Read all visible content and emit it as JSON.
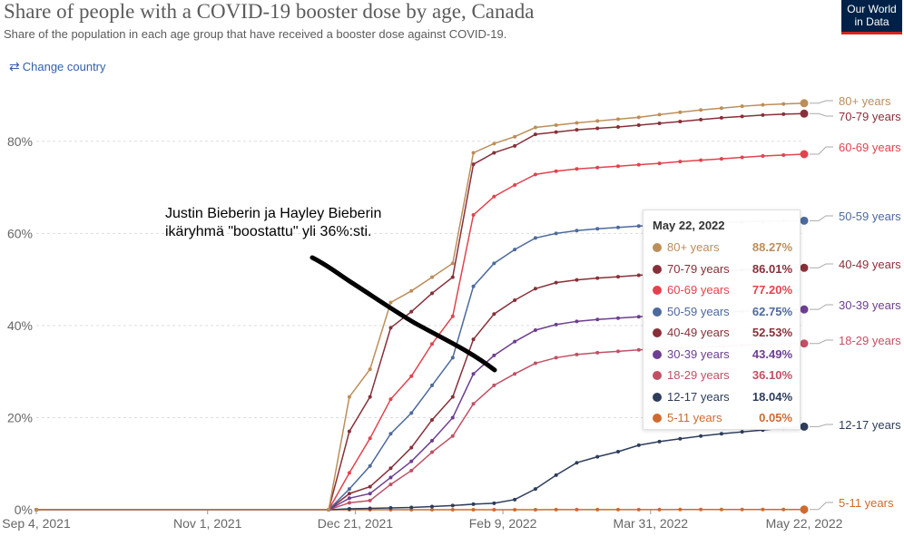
{
  "header": {
    "title": "Share of people with a COVID-19 booster dose by age, Canada",
    "subtitle": "Share of the population in each age group that have received a booster dose against COVID-19.",
    "change_country": "Change country",
    "logo_line1": "Our World",
    "logo_line2": "in Data"
  },
  "annotation": "Justin Bieberin ja Hayley Bieberin ikäryhmä \"boostattu\" yli 36%:sti.",
  "tooltip": {
    "date": "May 22, 2022",
    "rows": [
      {
        "label": "80+ years",
        "value": "88.27%"
      },
      {
        "label": "70-79 years",
        "value": "86.01%"
      },
      {
        "label": "60-69 years",
        "value": "77.20%"
      },
      {
        "label": "50-59 years",
        "value": "62.75%"
      },
      {
        "label": "40-49 years",
        "value": "52.53%"
      },
      {
        "label": "30-39 years",
        "value": "43.49%"
      },
      {
        "label": "18-29 years",
        "value": "36.10%"
      },
      {
        "label": "12-17 years",
        "value": "18.04%"
      },
      {
        "label": "5-11 years",
        "value": "0.05%"
      }
    ]
  },
  "chart_data": {
    "type": "line",
    "x_unit": "days since Sep 4, 2021",
    "x_ticks": [
      {
        "x": 0,
        "label": "Sep 4, 2021"
      },
      {
        "x": 58,
        "label": "Nov 1, 2021"
      },
      {
        "x": 108,
        "label": "Dec 21, 2021"
      },
      {
        "x": 158,
        "label": "Feb 9, 2022"
      },
      {
        "x": 208,
        "label": "Mar 31, 2022"
      },
      {
        "x": 260,
        "label": "May 22, 2022"
      }
    ],
    "y_ticks": [
      0,
      20,
      40,
      60,
      80
    ],
    "ylim": [
      0,
      90
    ],
    "xlim": [
      0,
      260
    ],
    "y_tick_suffix": "%",
    "series": [
      {
        "name": "80+ years",
        "color": "#BC8E5A",
        "x": [
          0,
          99,
          106,
          113,
          120,
          127,
          134,
          141,
          148,
          155,
          162,
          169,
          176,
          183,
          190,
          197,
          204,
          211,
          218,
          225,
          232,
          239,
          246,
          253,
          260
        ],
        "y": [
          0,
          0,
          24.5,
          30.5,
          45,
          47.5,
          50.5,
          53.5,
          77.5,
          79.5,
          81,
          83,
          83.5,
          84,
          84.4,
          84.8,
          85.2,
          85.8,
          86.3,
          86.8,
          87.2,
          87.6,
          87.9,
          88.1,
          88.27
        ]
      },
      {
        "name": "70-79 years",
        "color": "#883039",
        "x": [
          0,
          99,
          106,
          113,
          120,
          127,
          134,
          141,
          148,
          155,
          162,
          169,
          176,
          183,
          190,
          197,
          204,
          211,
          218,
          225,
          232,
          239,
          246,
          253,
          260
        ],
        "y": [
          0,
          0,
          17,
          24.5,
          39.5,
          43,
          47,
          50.5,
          75,
          77.5,
          79,
          81.5,
          82,
          82.5,
          82.8,
          83.1,
          83.5,
          83.9,
          84.3,
          84.7,
          85.1,
          85.4,
          85.7,
          85.9,
          86.01
        ]
      },
      {
        "name": "60-69 years",
        "color": "#E1434E",
        "x": [
          0,
          99,
          106,
          113,
          120,
          127,
          134,
          141,
          148,
          155,
          162,
          169,
          176,
          183,
          190,
          197,
          204,
          211,
          218,
          225,
          232,
          239,
          246,
          253,
          260
        ],
        "y": [
          0,
          0,
          8,
          15.5,
          24,
          29,
          36,
          42,
          64,
          68,
          70.5,
          72.8,
          73.5,
          74,
          74.3,
          74.6,
          74.9,
          75.2,
          75.6,
          75.9,
          76.2,
          76.5,
          76.8,
          77,
          77.2
        ]
      },
      {
        "name": "50-59 years",
        "color": "#4C6A9C",
        "x": [
          0,
          99,
          106,
          113,
          120,
          127,
          134,
          141,
          148,
          155,
          162,
          169,
          176,
          183,
          190,
          197,
          204,
          211,
          218,
          225,
          232,
          239,
          246,
          253,
          260
        ],
        "y": [
          0,
          0,
          4.5,
          9.5,
          16.5,
          21,
          27,
          33,
          48.5,
          53.5,
          56.5,
          59,
          60,
          60.6,
          61,
          61.3,
          61.6,
          61.8,
          62,
          62.2,
          62.4,
          62.5,
          62.6,
          62.7,
          62.75
        ]
      },
      {
        "name": "40-49 years",
        "color": "#883039",
        "x": [
          0,
          99,
          106,
          113,
          120,
          127,
          134,
          141,
          148,
          155,
          162,
          169,
          176,
          183,
          190,
          197,
          204,
          211,
          218,
          225,
          232,
          239,
          246,
          253,
          260
        ],
        "y": [
          0,
          0,
          3.5,
          5,
          9,
          13.5,
          19.5,
          24.5,
          37,
          42.5,
          45.5,
          48,
          49.3,
          49.9,
          50.3,
          50.6,
          50.9,
          51.2,
          51.5,
          51.7,
          51.9,
          52.1,
          52.3,
          52.4,
          52.53
        ]
      },
      {
        "name": "30-39 years",
        "color": "#6D3E91",
        "x": [
          0,
          99,
          106,
          113,
          120,
          127,
          134,
          141,
          148,
          155,
          162,
          169,
          176,
          183,
          190,
          197,
          204,
          211,
          218,
          225,
          232,
          239,
          246,
          253,
          260
        ],
        "y": [
          0,
          0,
          2.5,
          3.5,
          7,
          10.5,
          15,
          20,
          29.5,
          33.5,
          36.5,
          39,
          40.2,
          40.9,
          41.3,
          41.6,
          41.9,
          42.2,
          42.5,
          42.7,
          42.9,
          43.1,
          43.3,
          43.4,
          43.49
        ]
      },
      {
        "name": "18-29 years",
        "color": "#C15065",
        "x": [
          0,
          99,
          106,
          113,
          120,
          127,
          134,
          141,
          148,
          155,
          162,
          169,
          176,
          183,
          190,
          197,
          204,
          211,
          218,
          225,
          232,
          239,
          246,
          253,
          260
        ],
        "y": [
          0,
          0,
          1.5,
          2,
          5.5,
          8.5,
          12.5,
          16,
          23,
          27,
          29.5,
          31.8,
          33,
          33.7,
          34.1,
          34.4,
          34.7,
          34.9,
          35.1,
          35.3,
          35.5,
          35.7,
          35.9,
          36,
          36.1
        ]
      },
      {
        "name": "12-17 years",
        "color": "#2D3D5B",
        "x": [
          0,
          99,
          106,
          113,
          120,
          127,
          134,
          141,
          148,
          155,
          162,
          169,
          176,
          183,
          190,
          197,
          204,
          211,
          218,
          225,
          232,
          239,
          246,
          253,
          260
        ],
        "y": [
          0,
          0,
          0.2,
          0.3,
          0.4,
          0.5,
          0.7,
          0.9,
          1.2,
          1.4,
          2.2,
          4.5,
          7.5,
          10.2,
          11.5,
          12.6,
          14,
          14.8,
          15.4,
          16,
          16.5,
          16.9,
          17.3,
          17.7,
          18.04
        ]
      },
      {
        "name": "5-11 years",
        "color": "#CF6A2E",
        "x": [
          0,
          99,
          106,
          113,
          120,
          127,
          134,
          141,
          148,
          155,
          162,
          169,
          176,
          183,
          190,
          197,
          204,
          211,
          218,
          225,
          232,
          239,
          246,
          253,
          260
        ],
        "y": [
          0,
          0,
          0,
          0,
          0,
          0,
          0,
          0,
          0,
          0,
          0.01,
          0.01,
          0.02,
          0.02,
          0.02,
          0.03,
          0.03,
          0.03,
          0.04,
          0.04,
          0.04,
          0.05,
          0.05,
          0.05,
          0.05
        ]
      }
    ],
    "end_labels": [
      "80+ years",
      "70-79 years",
      "60-69 years",
      "50-59 years",
      "40-49 years",
      "30-39 years",
      "18-29 years",
      "12-17 years",
      "5-11 years"
    ],
    "label_colors": [
      "#BC8E5A",
      "#883039",
      "#E1434E",
      "#4C6A9C",
      "#883039",
      "#6D3E91",
      "#C15065",
      "#2D3D5B",
      "#CF6A2E"
    ]
  }
}
